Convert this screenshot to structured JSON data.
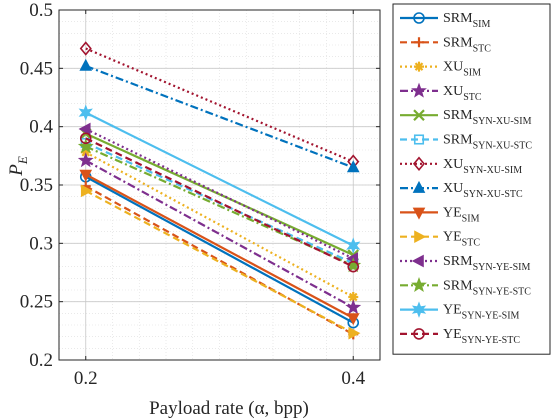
{
  "chart_data": {
    "type": "line",
    "x": [
      0.2,
      0.4
    ],
    "xlabel": "Payload rate (α, bpp)",
    "ylabel_main": "P",
    "ylabel_sub": "E",
    "xlim": [
      0.18,
      0.42
    ],
    "ylim": [
      0.2,
      0.5
    ],
    "xticks": [
      0.2,
      0.4
    ],
    "xtick_labels": [
      "0.2",
      "0.4"
    ],
    "yticks": [
      0.2,
      0.25,
      0.3,
      0.35,
      0.4,
      0.45,
      0.5
    ],
    "ytick_labels": [
      "0.2",
      "0.25",
      "0.3",
      "0.35",
      "0.4",
      "0.45",
      "0.5"
    ],
    "grid": true,
    "legend_position": "outside-right",
    "series": [
      {
        "name_main": "SRM",
        "name_sub": "SIM",
        "values": [
          0.357,
          0.232
        ],
        "color": "#0072BD",
        "dash": "solid",
        "marker": "circle"
      },
      {
        "name_main": "SRM",
        "name_sub": "STC",
        "values": [
          0.349,
          0.222
        ],
        "color": "#D95319",
        "dash": "dashed",
        "marker": "plus"
      },
      {
        "name_main": "XU",
        "name_sub": "SIM",
        "values": [
          0.378,
          0.254
        ],
        "color": "#EDB120",
        "dash": "dotted",
        "marker": "asterisk"
      },
      {
        "name_main": "XU",
        "name_sub": "STC",
        "values": [
          0.371,
          0.245
        ],
        "color": "#7E2F8E",
        "dash": "dashdot",
        "marker": "star"
      },
      {
        "name_main": "SRM",
        "name_sub": "SYN-XU-SIM",
        "values": [
          0.394,
          0.29
        ],
        "color": "#77AC30",
        "dash": "solid",
        "marker": "x"
      },
      {
        "name_main": "SRM",
        "name_sub": "SYN-XU-STC",
        "values": [
          0.386,
          0.283
        ],
        "color": "#4DBEEE",
        "dash": "dashed",
        "marker": "square"
      },
      {
        "name_main": "XU",
        "name_sub": "SYN-XU-SIM",
        "values": [
          0.467,
          0.37
        ],
        "color": "#A2142F",
        "dash": "dotted",
        "marker": "diamond"
      },
      {
        "name_main": "XU",
        "name_sub": "SYN-XU-STC",
        "values": [
          0.452,
          0.365
        ],
        "color": "#0072BD",
        "dash": "dashdot",
        "marker": "triangle-up"
      },
      {
        "name_main": "YE",
        "name_sub": "SIM",
        "values": [
          0.359,
          0.236
        ],
        "color": "#D95319",
        "dash": "solid",
        "marker": "triangle-down"
      },
      {
        "name_main": "YE",
        "name_sub": "STC",
        "values": [
          0.345,
          0.223
        ],
        "color": "#EDB120",
        "dash": "dashed",
        "marker": "triangle-right"
      },
      {
        "name_main": "SRM",
        "name_sub": "SYN-YE-SIM",
        "values": [
          0.398,
          0.287
        ],
        "color": "#7E2F8E",
        "dash": "dotted",
        "marker": "triangle-left"
      },
      {
        "name_main": "SRM",
        "name_sub": "SYN-YE-STC",
        "values": [
          0.383,
          0.281
        ],
        "color": "#77AC30",
        "dash": "dashdot",
        "marker": "pentagram"
      },
      {
        "name_main": "YE",
        "name_sub": "SYN-YE-SIM",
        "values": [
          0.412,
          0.298
        ],
        "color": "#4DBEEE",
        "dash": "solid",
        "marker": "hexagram"
      },
      {
        "name_main": "YE",
        "name_sub": "SYN-YE-STC",
        "values": [
          0.39,
          0.28
        ],
        "color": "#A2142F",
        "dash": "dashed",
        "marker": "circle"
      }
    ]
  }
}
